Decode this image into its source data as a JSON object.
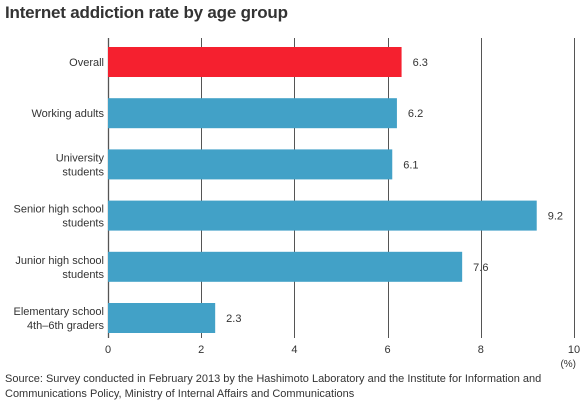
{
  "chart_data": {
    "type": "bar",
    "orientation": "horizontal",
    "title": "Internet addiction rate by age group",
    "categories": [
      [
        "Overall"
      ],
      [
        "Working adults"
      ],
      [
        "University",
        "students"
      ],
      [
        "Senior high school",
        "students"
      ],
      [
        "Junior high school",
        "students"
      ],
      [
        "Elementary school",
        "4th–6th graders"
      ]
    ],
    "values": [
      6.3,
      6.2,
      6.1,
      9.2,
      7.6,
      2.3
    ],
    "value_labels": [
      "6.3",
      "6.2",
      "6.1",
      "9.2",
      "7.6",
      "2.3"
    ],
    "highlight_index": 0,
    "xlim": [
      0,
      10
    ],
    "xticks": [
      0,
      2,
      4,
      6,
      8,
      10
    ],
    "xtick_labels": [
      "0",
      "2",
      "4",
      "6",
      "8",
      "10"
    ],
    "unit_label": "(%)",
    "grid": true,
    "colors": {
      "bar": "#42a1c7",
      "highlight": "#f5202f",
      "grid": "#555555",
      "text": "#333333"
    }
  },
  "source": "Source: Survey conducted in February 2013 by the Hashimoto Laboratory and the Institute for Information and Communications Policy, Ministry of Internal Affairs and Communications"
}
